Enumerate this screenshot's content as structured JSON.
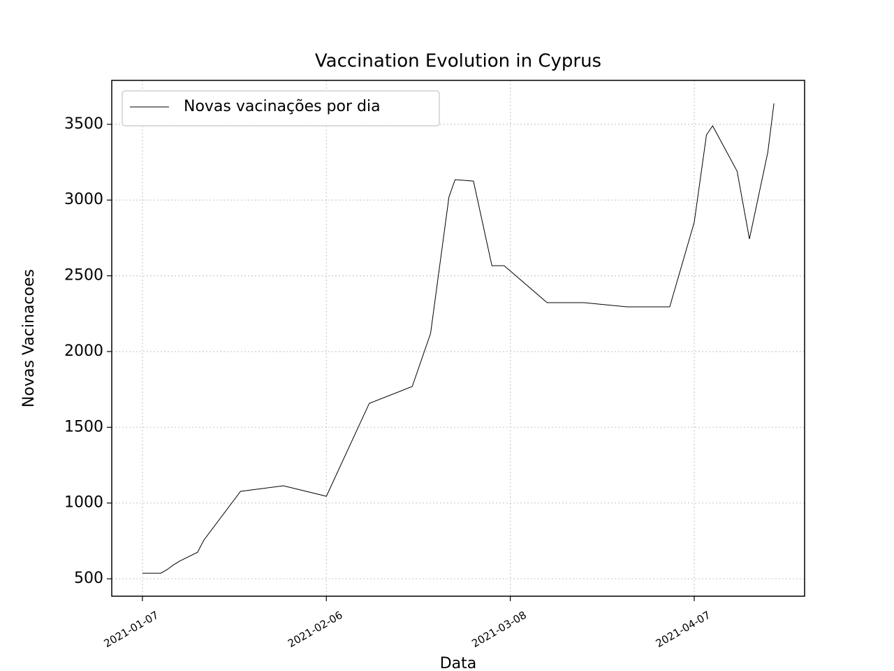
{
  "chart_data": {
    "type": "line",
    "title": "Vaccination Evolution in Cyprus",
    "xlabel": "Data",
    "ylabel": "Novas Vacinacoes",
    "x": [
      "2021-01-07",
      "2021-01-10",
      "2021-01-11",
      "2021-01-12",
      "2021-01-13",
      "2021-01-16",
      "2021-01-17",
      "2021-01-23",
      "2021-01-30",
      "2021-02-06",
      "2021-02-13",
      "2021-02-20",
      "2021-02-23",
      "2021-02-26",
      "2021-02-27",
      "2021-03-02",
      "2021-03-05",
      "2021-03-07",
      "2021-03-14",
      "2021-03-20",
      "2021-03-27",
      "2021-04-03",
      "2021-04-07",
      "2021-04-09",
      "2021-04-10",
      "2021-04-14",
      "2021-04-16",
      "2021-04-19",
      "2021-04-20"
    ],
    "series": [
      {
        "name": "Novas vacinações por dia",
        "color": "#000000",
        "values": [
          537,
          537,
          560,
          590,
          615,
          675,
          754,
          1077,
          1114,
          1045,
          1658,
          1769,
          2120,
          3020,
          3135,
          3125,
          2567,
          2567,
          2323,
          2323,
          2295,
          2295,
          2854,
          3430,
          3490,
          3190,
          2743,
          3315,
          3638
        ]
      }
    ],
    "xlim": [
      "2021-01-02",
      "2021-04-25"
    ],
    "xticks": [
      "2021-01-07",
      "2021-02-06",
      "2021-03-08",
      "2021-04-07"
    ],
    "ylim": [
      385,
      3790
    ],
    "yticks": [
      500,
      1000,
      1500,
      2000,
      2500,
      3000,
      3500
    ],
    "grid": true,
    "legend": "upper left"
  }
}
